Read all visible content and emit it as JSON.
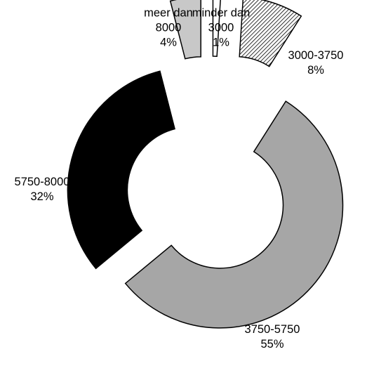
{
  "chart_data": {
    "type": "pie",
    "variant": "exploded-donut",
    "title": "",
    "slices": [
      {
        "label_lines": [
          "minder dan",
          "3000"
        ],
        "percent_label": "1%",
        "value": 1,
        "fill": "#ffffff",
        "pattern": "none"
      },
      {
        "label_lines": [
          "3000-3750"
        ],
        "percent_label": "8%",
        "value": 8,
        "fill": "#ffffff",
        "pattern": "diagonal-hatch"
      },
      {
        "label_lines": [
          "3750-5750"
        ],
        "percent_label": "55%",
        "value": 55,
        "fill": "#a6a6a6",
        "pattern": "none"
      },
      {
        "label_lines": [
          "5750-8000"
        ],
        "percent_label": "32%",
        "value": 32,
        "fill": "#000000",
        "pattern": "none"
      },
      {
        "label_lines": [
          "meer dan",
          "8000"
        ],
        "percent_label": "4%",
        "value": 4,
        "fill": "#c8c8c8",
        "pattern": "none"
      }
    ],
    "legend": "none"
  }
}
